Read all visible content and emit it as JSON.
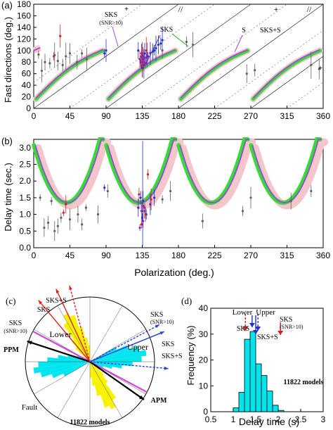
{
  "chart_data": [
    {
      "panel_label": "(a)",
      "type": "scatter",
      "ylabel": "Fast directions (deg.)",
      "xlim": [
        0,
        360
      ],
      "ylim": [
        0,
        180
      ],
      "xticks": [
        0,
        45,
        90,
        135,
        180,
        225,
        270,
        315,
        360
      ],
      "yticks": [
        0,
        20,
        40,
        60,
        80,
        100,
        120,
        140,
        160,
        180
      ],
      "grid": false,
      "annotations": [
        "SKS",
        "(SNR>10)",
        "SKS",
        "S",
        "SKS+S",
        "//",
        "//",
        "+",
        "+",
        "+"
      ],
      "series": [
        {
          "name": "SKS",
          "color": "#2030d0",
          "x": [
            88,
            90,
            130,
            133,
            134,
            135,
            136,
            137,
            138,
            140,
            142,
            145,
            148,
            150,
            152,
            155,
            158,
            160
          ],
          "y": [
            95,
            100,
            100,
            80,
            90,
            70,
            85,
            75,
            95,
            88,
            90,
            95,
            98,
            100,
            104,
            110,
            112,
            118
          ]
        },
        {
          "name": "SKS (SNR>10)",
          "color": "#d02020",
          "x": [
            25,
            33,
            132,
            134,
            135,
            136,
            137,
            140
          ],
          "y": [
            90,
            125,
            85,
            95,
            75,
            90,
            80,
            100
          ]
        },
        {
          "name": "S",
          "color": "#606060",
          "x": [
            6,
            10,
            14,
            20,
            26,
            30,
            36,
            40,
            45,
            54,
            60,
            66,
            160,
            190,
            198,
            265,
            275,
            345,
            355
          ],
          "y": [
            93,
            65,
            80,
            78,
            92,
            82,
            75,
            90,
            95,
            80,
            95,
            85,
            100,
            115,
            110,
            60,
            66,
            75,
            68
          ]
        },
        {
          "name": "SKS+S",
          "color": "#7a2fb8",
          "x": [
            133,
            135,
            137,
            139,
            141,
            145
          ],
          "y": [
            82,
            95,
            88,
            78,
            92,
            96
          ]
        }
      ]
    },
    {
      "panel_label": "(b)",
      "type": "scatter",
      "xlabel": "Polarization (deg.)",
      "ylabel": "Delay time (sec.)",
      "xlim": [
        0,
        360
      ],
      "ylim": [
        0,
        3.25
      ],
      "xticks": [
        0,
        45,
        90,
        135,
        180,
        225,
        270,
        315,
        360
      ],
      "yticks": [
        0.0,
        0.5,
        1.0,
        1.5,
        2.0,
        2.5,
        3.0
      ],
      "grid": false,
      "series": [
        {
          "name": "SKS",
          "color": "#2030d0",
          "x": [
            88,
            130,
            133,
            135,
            136,
            138,
            140,
            145,
            150
          ],
          "y": [
            1.8,
            1.2,
            1.5,
            0.9,
            1.4,
            1.1,
            1.0,
            1.3,
            1.5
          ]
        },
        {
          "name": "SKS (SNR>10)",
          "color": "#d02020",
          "x": [
            37,
            40,
            131,
            134,
            136,
            139,
            142,
            146
          ],
          "y": [
            1.05,
            1.3,
            1.6,
            0.7,
            1.25,
            1.0,
            2.2,
            1.45
          ]
        },
        {
          "name": "S",
          "color": "#606060",
          "x": [
            8,
            13,
            18,
            22,
            26,
            30,
            34,
            45,
            55,
            60,
            65,
            80,
            92,
            160,
            170,
            210,
            260,
            270,
            320,
            345
          ],
          "y": [
            1.5,
            0.6,
            0.75,
            1.4,
            0.5,
            0.65,
            0.9,
            0.85,
            1.0,
            0.7,
            1.2,
            1.0,
            1.7,
            1.45,
            1.7,
            0.8,
            1.1,
            1.5,
            1.4,
            1.7
          ]
        },
        {
          "name": "SKS+S",
          "color": "#7a2fb8",
          "x": [
            132,
            134,
            136,
            138
          ],
          "y": [
            0.6,
            1.1,
            0.8,
            1.2
          ]
        }
      ]
    },
    {
      "panel_label": "(c)",
      "type": "rose",
      "center_text": "11822 models",
      "labels": [
        "SKS+S",
        "SKS",
        "SKS",
        "(SNR>10)",
        "Lower",
        "PPM",
        "Fault",
        "SKS",
        "(SNR>10)",
        "Upper",
        "SKS",
        "SKS+S",
        "APM"
      ],
      "colors": {
        "yellow_petals": "#f7f200",
        "cyan_petals": "#00e5ee",
        "fault_line": "#d046d8",
        "lower_arrows": "#e02020",
        "upper_arrows": "#2040e0"
      },
      "directions_deg": {
        "PPM": 288,
        "APM": 125,
        "Fault": 118,
        "Lower_SKS": 335,
        "Lower_SKS_SNR": 320,
        "Lower_SKS_S": 345,
        "Upper_SKS": 68,
        "Upper_SKS_SNR": 62,
        "Upper_SKS_S": 95
      }
    },
    {
      "panel_label": "(d)",
      "type": "bar",
      "xlabel": "Delay time (s)",
      "ylabel": "Frequency (%)",
      "xlim": [
        0.5,
        3.0
      ],
      "ylim": [
        0,
        40
      ],
      "xticks": [
        0.5,
        1.0,
        1.5,
        2.0,
        2.5,
        3.0
      ],
      "yticks": [
        0,
        10,
        20,
        30,
        40
      ],
      "bin_width": 0.125,
      "bin_starts": [
        1.0,
        1.125,
        1.25,
        1.375,
        1.5,
        1.625,
        1.75,
        1.875,
        2.0
      ],
      "values": [
        1.5,
        7.5,
        28.0,
        31.0,
        18.5,
        14.0,
        8.0,
        2.5,
        0.5
      ],
      "bar_color": "#00e5ee",
      "annotations": [
        "11822 models",
        "Lower",
        "Upper",
        "SKS",
        "SKS+S",
        "SKS",
        "(SNR>10)"
      ],
      "markers": [
        {
          "label": "Lower",
          "x": 1.27,
          "color": "#d02020"
        },
        {
          "label": "Upper",
          "x": 1.55,
          "color": "#2030d0"
        },
        {
          "label": "SKS",
          "x": 1.42,
          "color": "#2030d0"
        },
        {
          "label": "SKS+S",
          "x": 1.5,
          "color": "#2030d0"
        },
        {
          "label": "SKS (SNR>10)",
          "x": 2.05,
          "color": "#d02020"
        }
      ]
    }
  ]
}
